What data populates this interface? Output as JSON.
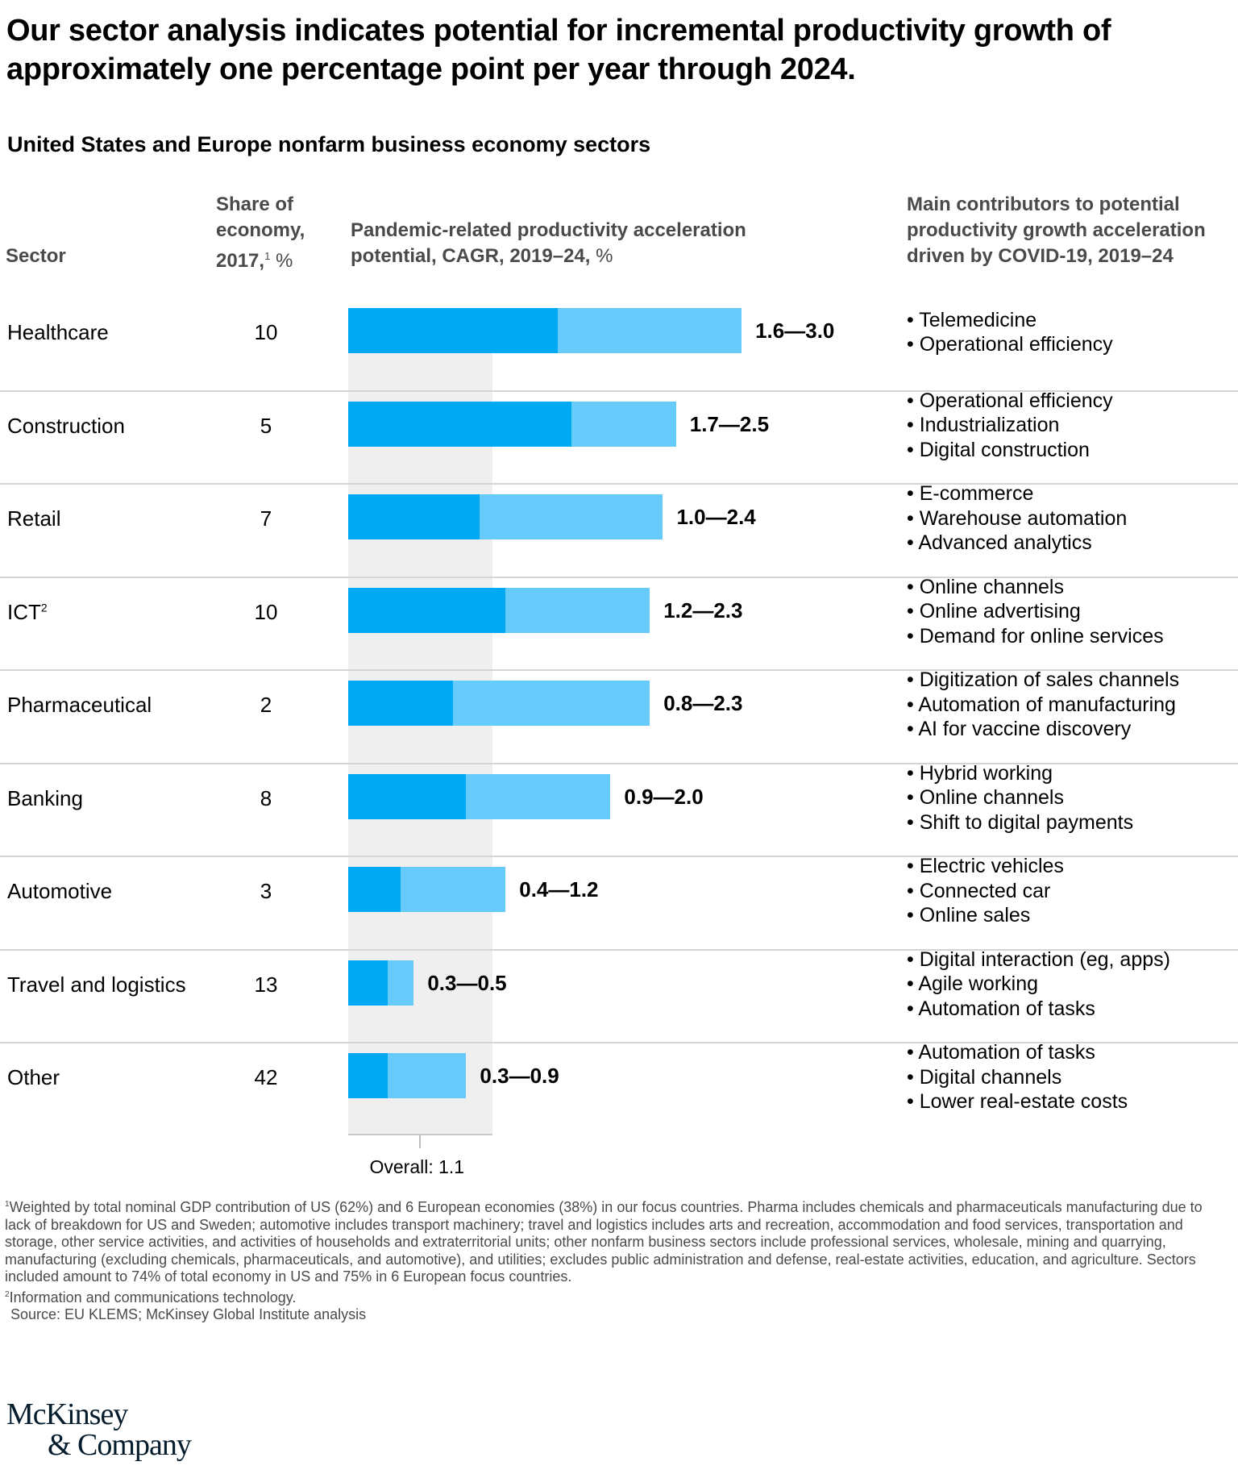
{
  "title": "Our sector analysis indicates potential for incremental productivity growth of approximately one percentage point per year through 2024.",
  "subtitle": "United States and Europe nonfarm business economy sectors",
  "headers": {
    "sector": "Sector",
    "share_l1": "Share of",
    "share_l2": "economy,",
    "share_l3": "2017,",
    "share_sup": "1",
    "share_unit": " %",
    "chart_l1": "Pandemic-related productivity acceleration",
    "chart_l2": "potential, CAGR, 2019–24,",
    "chart_unit": " %",
    "contrib_l1": "Main contributors to potential",
    "contrib_l2": "productivity growth acceleration",
    "contrib_l3": "driven by COVID-19, 2019–24"
  },
  "colors": {
    "low_bar": "#00a9f4",
    "high_bar": "#66cbfa",
    "overall_band": "#efefef"
  },
  "rows": [
    {
      "sector": "Healthcare",
      "sup": "",
      "share": "10",
      "label": "1.6—3.0",
      "contributors": [
        "• Telemedicine",
        "• Operational efficiency"
      ]
    },
    {
      "sector": "Construction",
      "sup": "",
      "share": "5",
      "label": "1.7—2.5",
      "contributors": [
        "• Operational efficiency",
        "• Industrialization",
        "• Digital construction"
      ]
    },
    {
      "sector": "Retail",
      "sup": "",
      "share": "7",
      "label": "1.0—2.4",
      "contributors": [
        "• E-commerce",
        "• Warehouse automation",
        "• Advanced analytics"
      ]
    },
    {
      "sector": "ICT",
      "sup": "2",
      "share": "10",
      "label": "1.2—2.3",
      "contributors": [
        "• Online channels",
        "• Online advertising",
        "• Demand for online services"
      ]
    },
    {
      "sector": "Pharmaceutical",
      "sup": "",
      "share": "2",
      "label": "0.8—2.3",
      "contributors": [
        "• Digitization of sales channels",
        "• Automation of manufacturing",
        "• AI for vaccine discovery"
      ]
    },
    {
      "sector": "Banking",
      "sup": "",
      "share": "8",
      "label": "0.9—2.0",
      "contributors": [
        "• Hybrid working",
        "• Online channels",
        "• Shift to digital payments"
      ]
    },
    {
      "sector": "Automotive",
      "sup": "",
      "share": "3",
      "label": "0.4—1.2",
      "contributors": [
        "• Electric vehicles",
        "• Connected car",
        "• Online sales"
      ]
    },
    {
      "sector": "Travel and logistics",
      "sup": "",
      "share": "13",
      "label": "0.3—0.5",
      "contributors": [
        "• Digital interaction (eg, apps)",
        "• Agile working",
        "• Automation of tasks"
      ]
    },
    {
      "sector": "Other",
      "sup": "",
      "share": "42",
      "label": "0.3—0.9",
      "contributors": [
        "• Automation of tasks",
        "• Digital channels",
        "• Lower real-estate costs"
      ]
    }
  ],
  "overall_label": "Overall: 1.1",
  "footnotes": {
    "note1_sup": "1",
    "note1": "Weighted by total nominal GDP contribution of US (62%) and 6 European economies (38%) in our focus countries. Pharma includes chemicals and pharmaceuticals manufacturing due to lack of breakdown for US and Sweden; automotive includes transport machinery; travel and logistics includes arts and recreation, accommodation and food services, transportation and storage, other service activities, and activities of households and extraterritorial units; other nonfarm business sectors include professional services, wholesale, mining and quarrying, manufacturing (excluding chemicals, pharmaceuticals, and automotive), and utilities; excludes public administration and defense, real-estate activities, education, and agriculture. Sectors included amount to 74% of total economy in US and 75% in 6 European focus countries.",
    "note2_sup": "2",
    "note2": "Information and communications technology.",
    "source": "Source: EU KLEMS; McKinsey Global Institute analysis"
  },
  "logo": {
    "line1": "McKinsey",
    "line2": "& Company"
  },
  "chart_data": {
    "type": "bar",
    "title": "Pandemic-related productivity acceleration potential, CAGR, 2019–24, %",
    "categories": [
      "Healthcare",
      "Construction",
      "Retail",
      "ICT",
      "Pharmaceutical",
      "Banking",
      "Automotive",
      "Travel and logistics",
      "Other"
    ],
    "series": [
      {
        "name": "Low estimate",
        "values": [
          1.6,
          1.7,
          1.0,
          1.2,
          0.8,
          0.9,
          0.4,
          0.3,
          0.3
        ]
      },
      {
        "name": "High estimate",
        "values": [
          3.0,
          2.5,
          2.4,
          2.3,
          2.3,
          2.0,
          1.2,
          0.5,
          0.9
        ]
      }
    ],
    "share_of_economy_2017_pct": [
      10,
      5,
      7,
      10,
      2,
      8,
      3,
      13,
      42
    ],
    "overall": 1.1,
    "xlim": [
      0,
      3.0
    ],
    "orientation": "horizontal",
    "stacked_range": true,
    "grid": false
  }
}
